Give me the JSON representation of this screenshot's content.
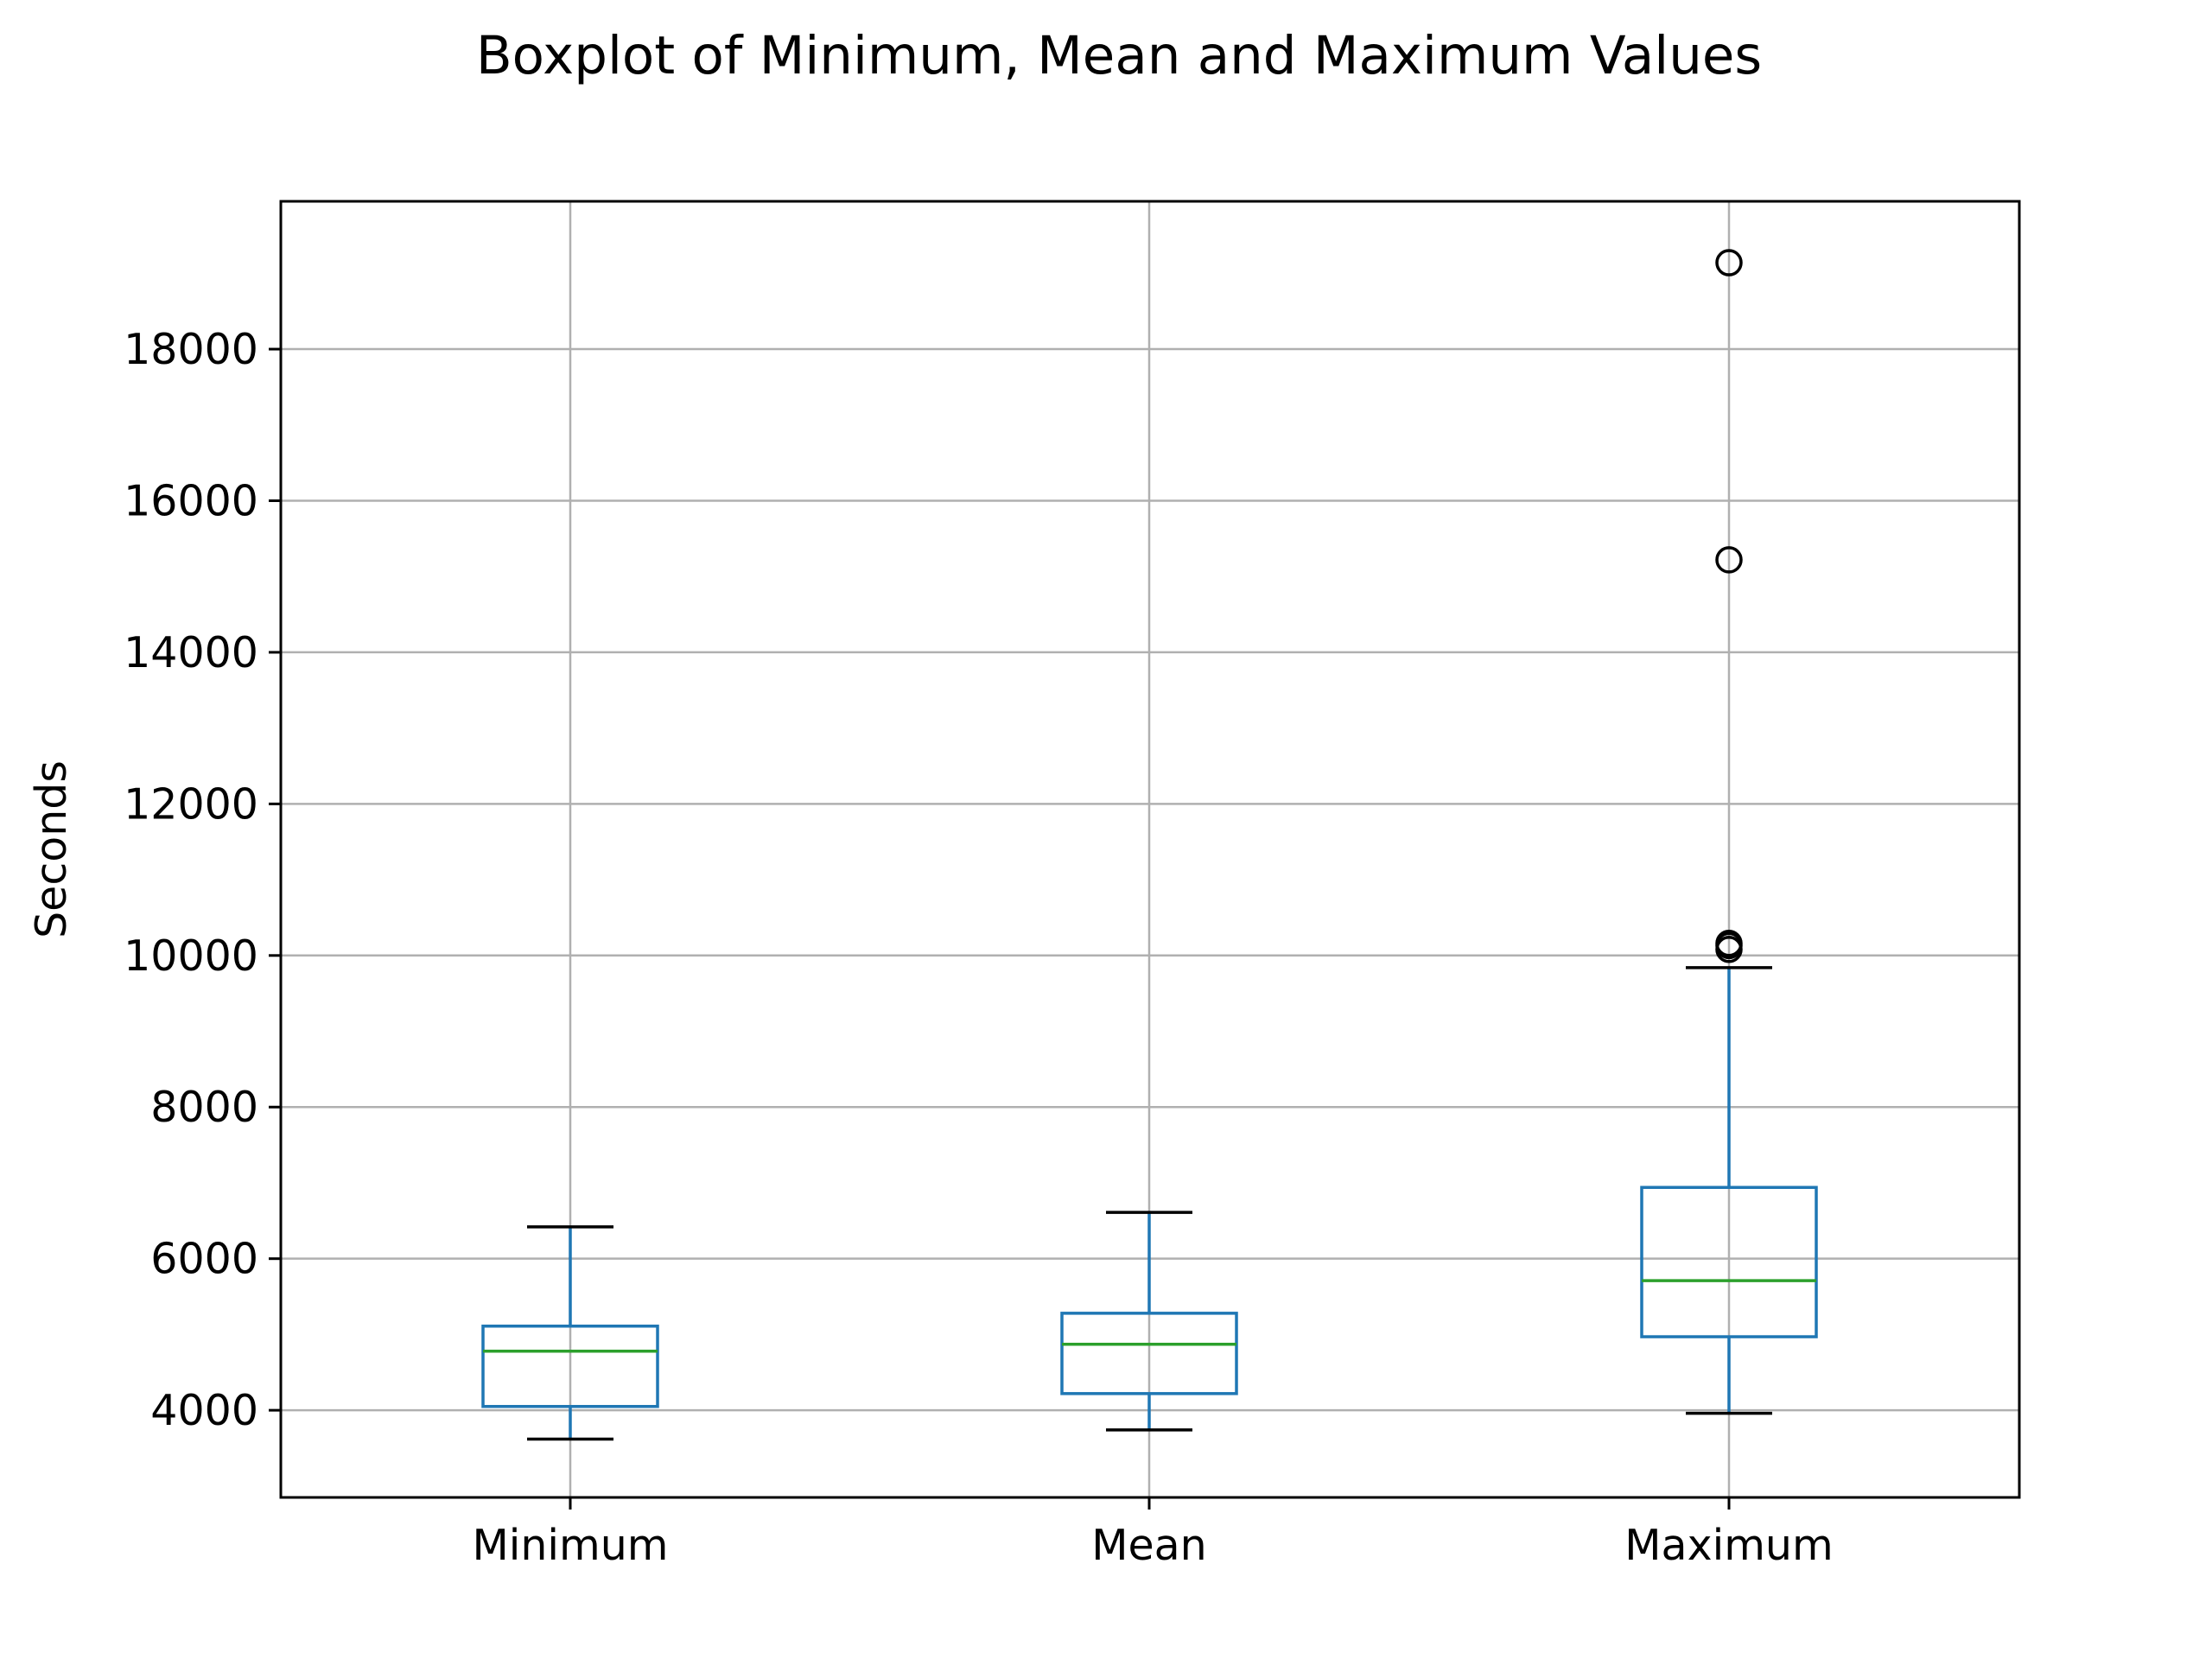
{
  "chart_data": {
    "type": "boxplot",
    "title": "Boxplot of Minimum, Mean and Maximum Values",
    "xlabel": "",
    "ylabel": "Seconds",
    "categories": [
      "Minimum",
      "Mean",
      "Maximum"
    ],
    "yticks": [
      "4000",
      "6000",
      "8000",
      "10000",
      "12000",
      "14000",
      "16000",
      "18000"
    ],
    "ylim": [
      2850,
      19950
    ],
    "grid": true,
    "boxes": [
      {
        "category": "Minimum",
        "whisker_low": 3620,
        "q1": 4050,
        "median": 4780,
        "q3": 5110,
        "whisker_high": 6420,
        "outliers": []
      },
      {
        "category": "Mean",
        "whisker_low": 3740,
        "q1": 4220,
        "median": 4870,
        "q3": 5280,
        "whisker_high": 6610,
        "outliers": []
      },
      {
        "category": "Maximum",
        "whisker_low": 3960,
        "q1": 4970,
        "median": 5710,
        "q3": 6940,
        "whisker_high": 9840,
        "outliers": [
          10080,
          10130,
          10160,
          15220,
          19140
        ]
      }
    ],
    "colors": {
      "box": "#1f77b4",
      "median": "#2ca02c",
      "whisker_cap": "#000000",
      "grid": "#b0b0b0",
      "outlier": "#000000"
    }
  }
}
